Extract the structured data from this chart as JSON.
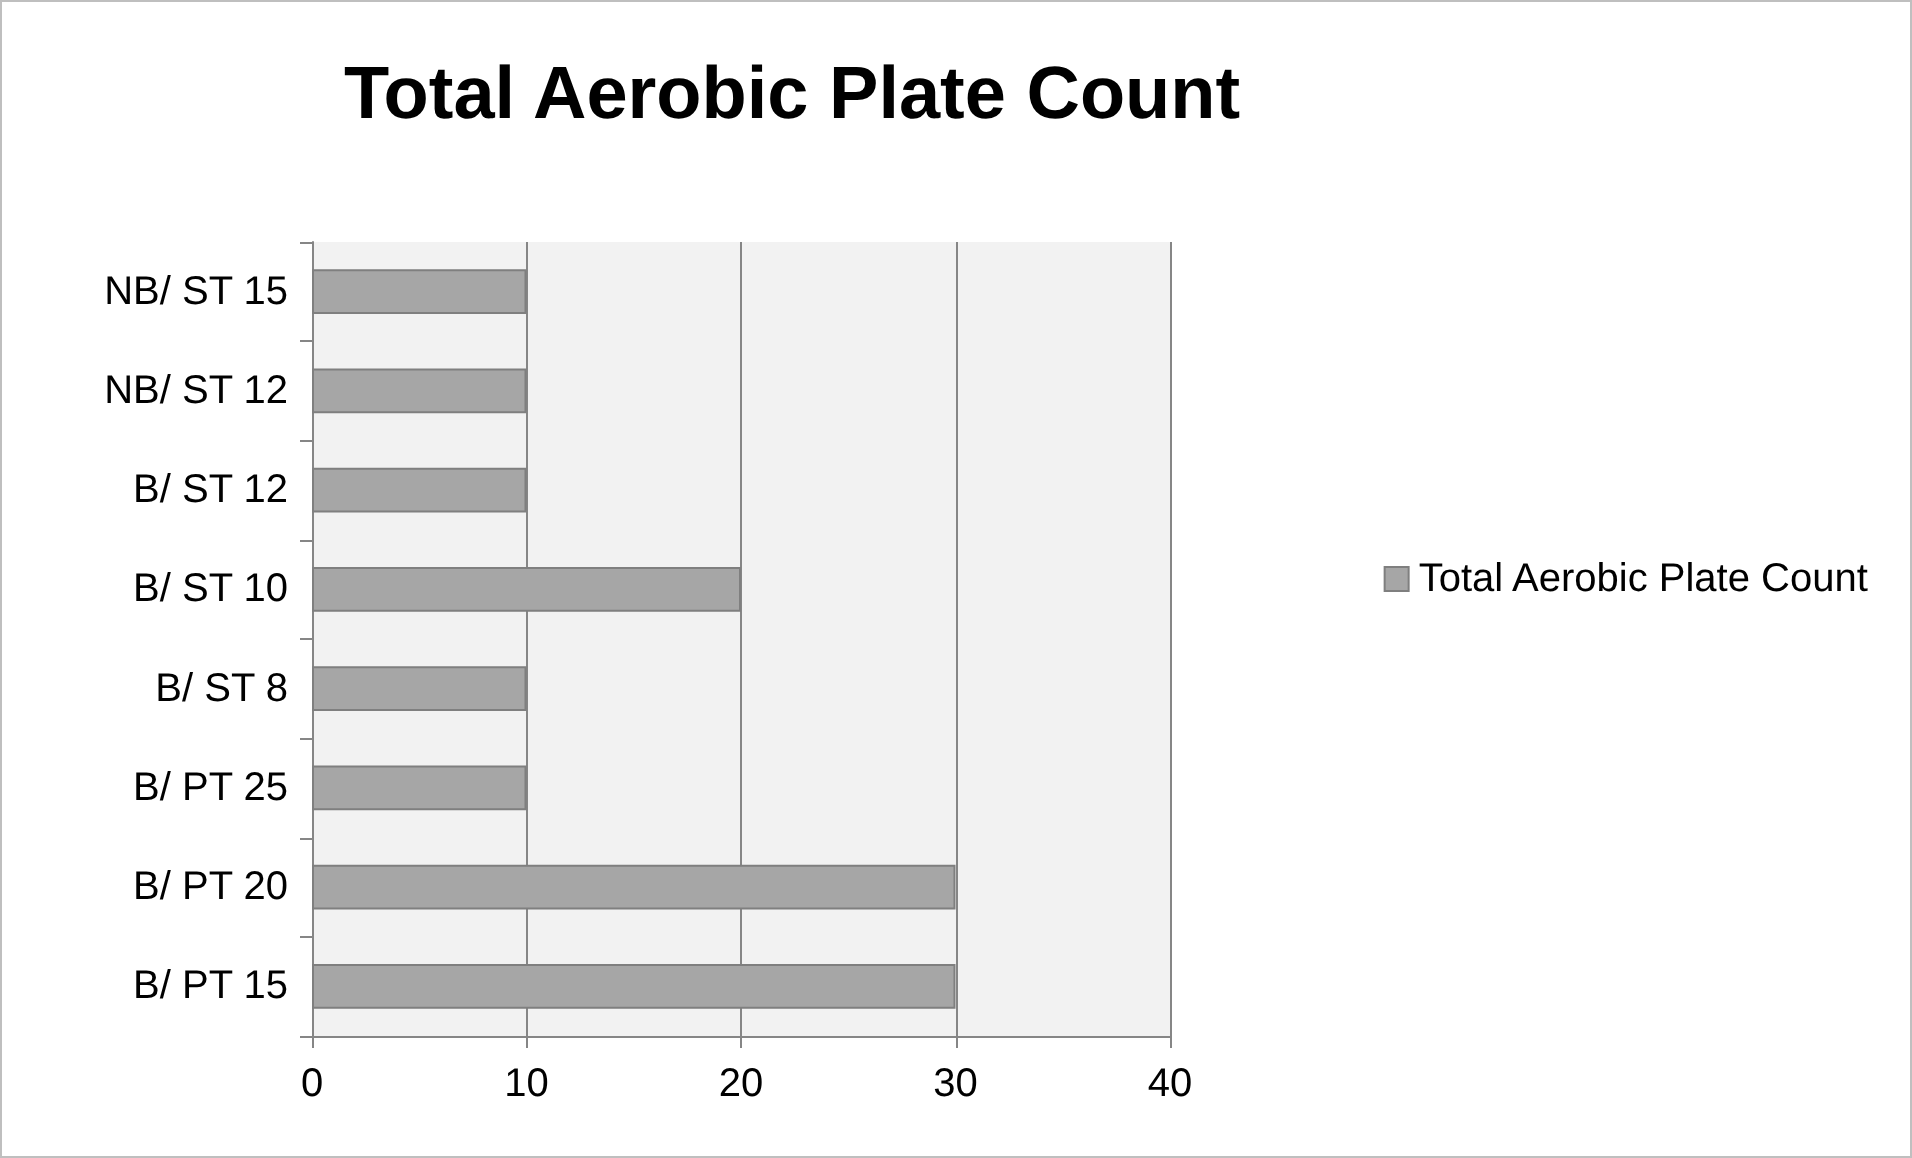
{
  "chart_data": {
    "type": "bar",
    "title": "Total Aerobic Plate Count",
    "orientation": "horizontal",
    "categories": [
      "NB/ ST 15",
      "NB/ ST 12",
      "B/ ST 12",
      "B/ ST 10",
      "B/ ST 8",
      "B/ PT 25",
      "B/ PT 20",
      "B/ PT 15"
    ],
    "series": [
      {
        "name": "Total Aerobic Plate Count",
        "color": "#a6a6a6",
        "values": [
          10,
          10,
          10,
          20,
          10,
          10,
          30,
          30
        ]
      }
    ],
    "xlim": [
      0,
      40
    ],
    "xticks": [
      0,
      10,
      20,
      30,
      40
    ],
    "grid": "x",
    "legend": "right"
  }
}
